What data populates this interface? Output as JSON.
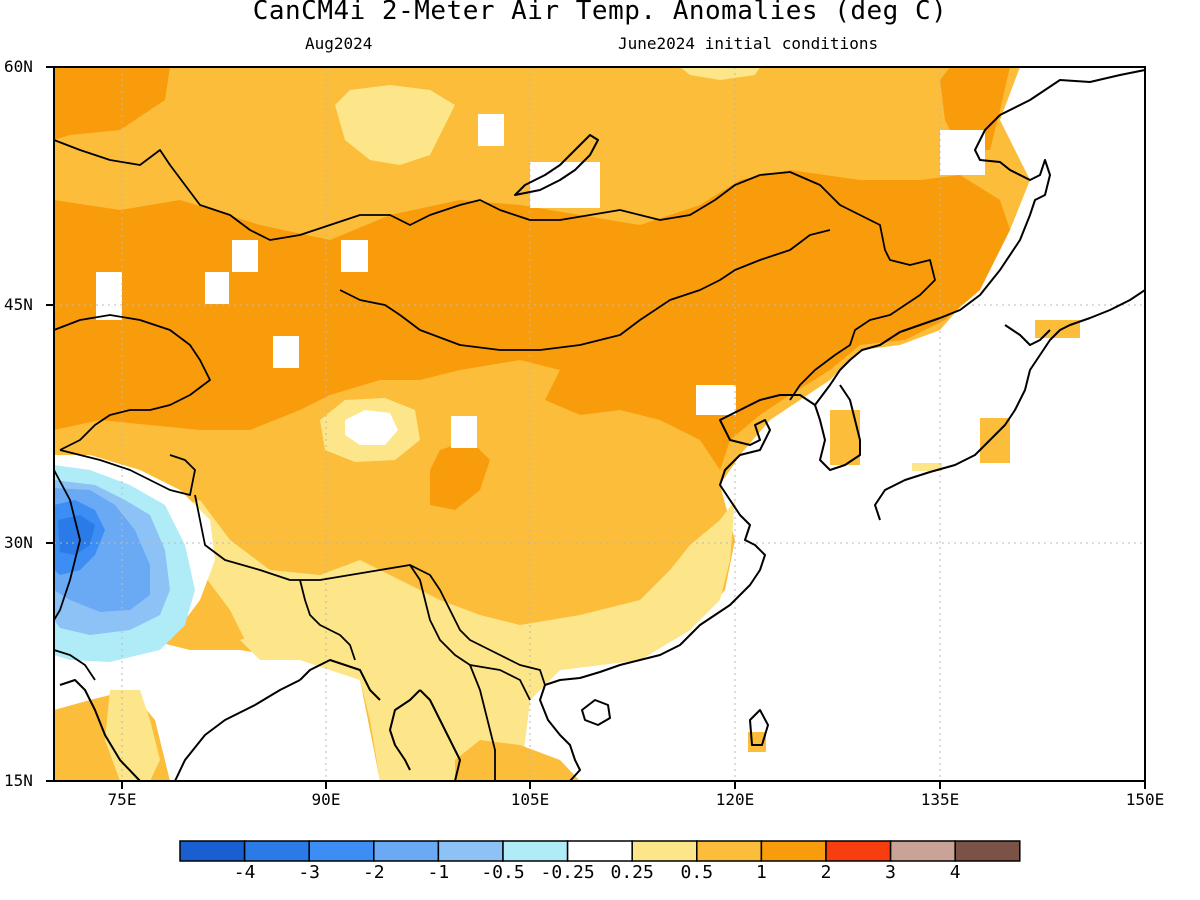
{
  "title": "CanCM4i 2-Meter Air Temp. Anomalies (deg C)",
  "subtitle_left": "Aug2024",
  "subtitle_right": "June2024 initial conditions",
  "lat_labels": [
    "60N",
    "45N",
    "30N",
    "15N"
  ],
  "lon_labels": [
    "75E",
    "90E",
    "105E",
    "120E",
    "135E",
    "150E"
  ],
  "colorbar": {
    "colors": [
      "#1a5fd2",
      "#2a7ae8",
      "#3c8ef5",
      "#6aaaf5",
      "#8dc2f7",
      "#b0ecf7",
      "#ffffff",
      "#fde68a",
      "#fbbd3a",
      "#f99c0c",
      "#f83d0e",
      "#c9a396",
      "#7a5246"
    ],
    "labels": [
      "-4",
      "-3",
      "-2",
      "-1",
      "-0.5",
      "-0.25",
      "0.25",
      "0.5",
      "1",
      "2",
      "3",
      "4"
    ]
  }
}
